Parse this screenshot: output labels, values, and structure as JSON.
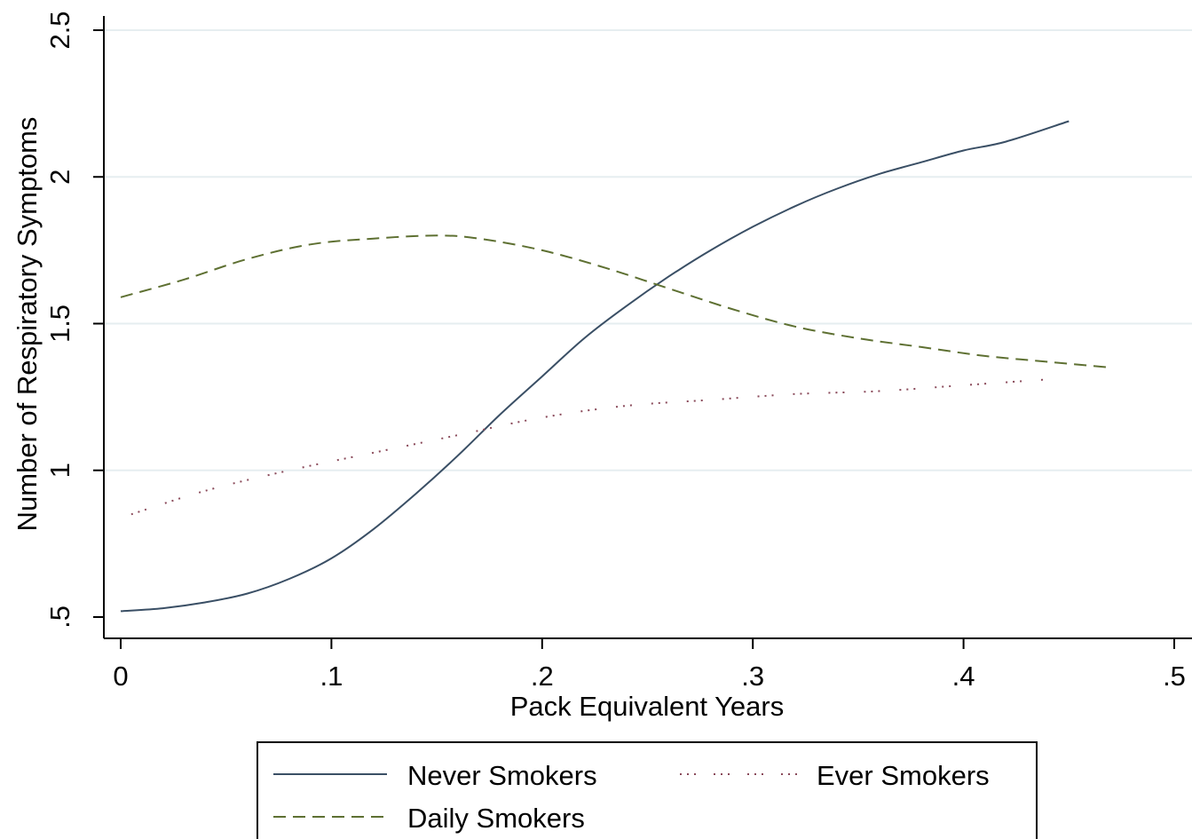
{
  "chart_data": {
    "type": "line",
    "title": "",
    "xlabel": "Pack Equivalent Years",
    "ylabel": "Number of Respiratory Symptoms",
    "xlim": [
      -0.008,
      0.5
    ],
    "ylim": [
      0.43,
      2.55
    ],
    "xticks": [
      {
        "value": 0,
        "label": "0"
      },
      {
        "value": 0.1,
        "label": ".1"
      },
      {
        "value": 0.2,
        "label": ".2"
      },
      {
        "value": 0.3,
        "label": ".3"
      },
      {
        "value": 0.4,
        "label": ".4"
      },
      {
        "value": 0.5,
        "label": ".5"
      }
    ],
    "yticks": [
      {
        "value": 0.5,
        "label": ".5"
      },
      {
        "value": 1,
        "label": "1"
      },
      {
        "value": 1.5,
        "label": "1.5"
      },
      {
        "value": 2,
        "label": "2"
      },
      {
        "value": 2.5,
        "label": "2.5"
      }
    ],
    "grid": "horizontal",
    "legend_position": "bottom",
    "series": [
      {
        "name": "Never Smokers",
        "color": "#3a4f65",
        "dash": "solid",
        "x": [
          0,
          0.02,
          0.04,
          0.06,
          0.08,
          0.1,
          0.12,
          0.14,
          0.16,
          0.18,
          0.2,
          0.22,
          0.24,
          0.26,
          0.28,
          0.3,
          0.32,
          0.34,
          0.36,
          0.38,
          0.4,
          0.42,
          0.45
        ],
        "y": [
          0.52,
          0.53,
          0.55,
          0.58,
          0.63,
          0.7,
          0.8,
          0.92,
          1.05,
          1.19,
          1.32,
          1.45,
          1.56,
          1.66,
          1.75,
          1.83,
          1.9,
          1.96,
          2.01,
          2.05,
          2.09,
          2.12,
          2.19
        ]
      },
      {
        "name": "Ever Smokers",
        "color": "#8a4a5a",
        "dash": "dotted",
        "x": [
          0.005,
          0.04,
          0.08,
          0.12,
          0.16,
          0.2,
          0.24,
          0.28,
          0.32,
          0.36,
          0.4,
          0.44
        ],
        "y": [
          0.85,
          0.93,
          1.0,
          1.06,
          1.12,
          1.18,
          1.22,
          1.24,
          1.26,
          1.27,
          1.29,
          1.31
        ]
      },
      {
        "name": "Daily Smokers",
        "color": "#5e7032",
        "dash": "dashed",
        "x": [
          0,
          0.03,
          0.06,
          0.09,
          0.12,
          0.15,
          0.17,
          0.2,
          0.23,
          0.26,
          0.29,
          0.32,
          0.35,
          0.38,
          0.41,
          0.44,
          0.47
        ],
        "y": [
          1.59,
          1.65,
          1.72,
          1.77,
          1.79,
          1.8,
          1.79,
          1.75,
          1.69,
          1.62,
          1.55,
          1.49,
          1.45,
          1.42,
          1.39,
          1.37,
          1.35
        ]
      }
    ],
    "legend": {
      "row1": [
        "Never Smokers",
        "Ever Smokers"
      ],
      "row2": [
        "Daily Smokers"
      ]
    }
  }
}
